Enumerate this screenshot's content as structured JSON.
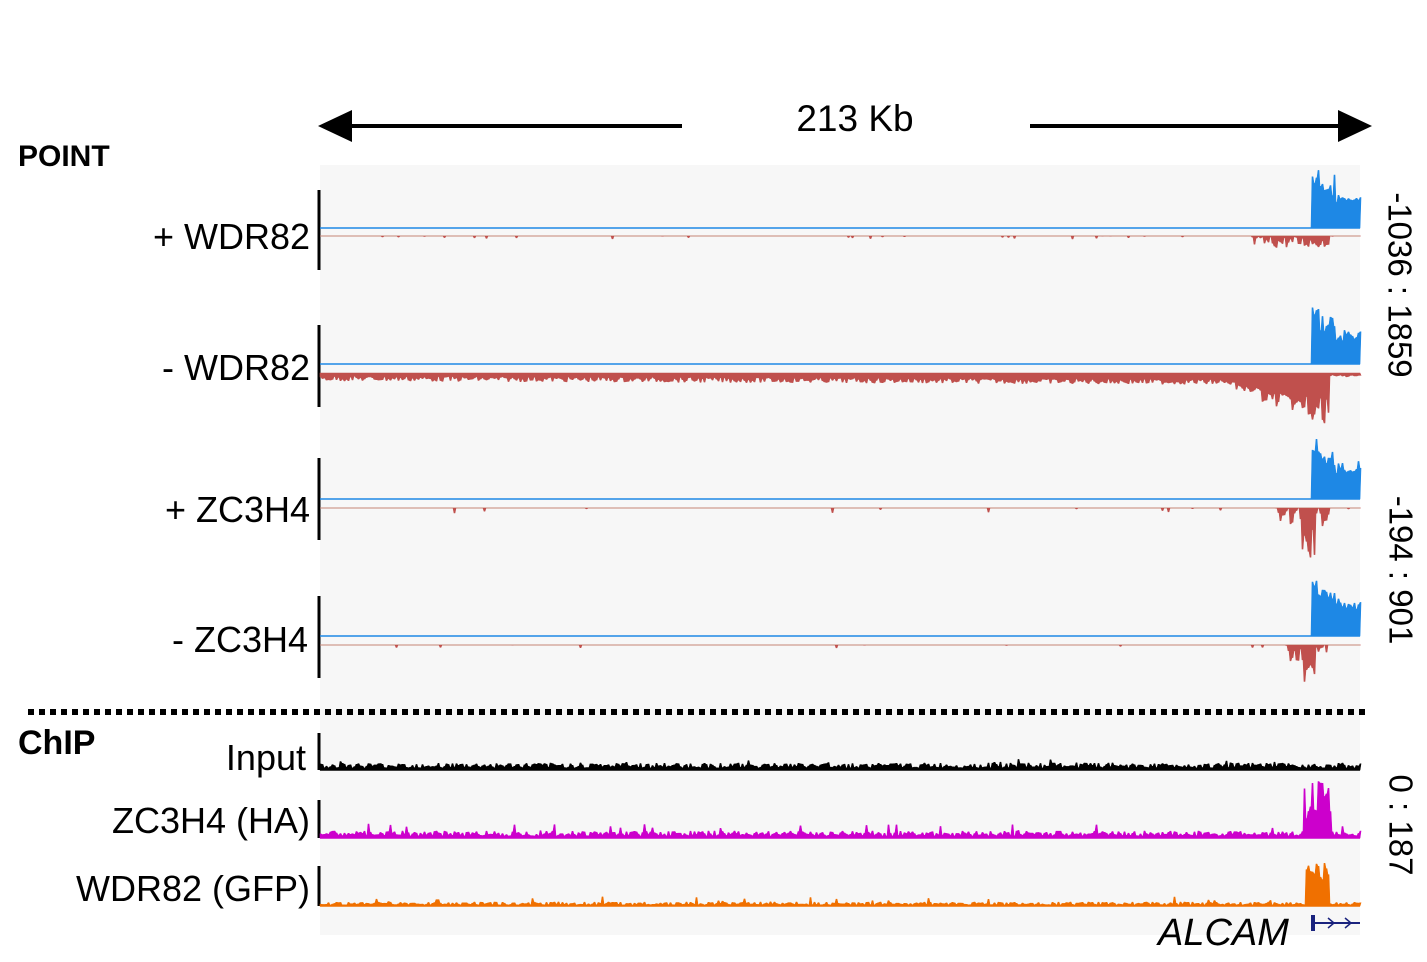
{
  "header": {
    "scale_label": "213 Kb"
  },
  "sections": {
    "point_title": "POINT",
    "chip_title": "ChIP"
  },
  "point_tracks": [
    {
      "label": "+ WDR82"
    },
    {
      "label": "- WDR82"
    },
    {
      "label": "+ ZC3H4"
    },
    {
      "label": "- ZC3H4"
    }
  ],
  "chip_tracks": [
    {
      "label": "Input",
      "color": "#000000"
    },
    {
      "label": "ZC3H4 (HA)",
      "color": "#cc00cc"
    },
    {
      "label": "WDR82 (GFP)",
      "color": "#f07000"
    }
  ],
  "scales": {
    "wdr82_range": "-1036 : 1859",
    "zc3h4_range": "-194 : 901",
    "chip_range": "0 : 187"
  },
  "gene": {
    "name": "ALCAM"
  },
  "colors": {
    "forward_strand": "#1e88e5",
    "reverse_strand": "#c0504d",
    "gene_model": "#1a237e"
  }
}
